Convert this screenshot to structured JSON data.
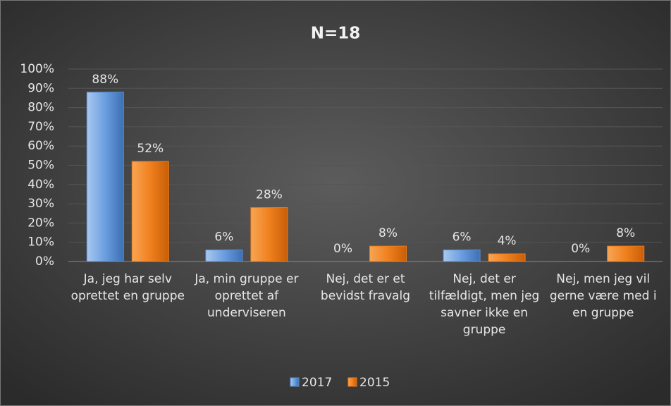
{
  "chart_data": {
    "type": "bar",
    "title": "N=18",
    "categories": [
      "Ja, jeg har selv oprettet en gruppe",
      "Ja, min gruppe er oprettet af underviseren",
      "Nej, det er et bevidst fravalg",
      "Nej, det er tilfældigt, men jeg savner ikke en gruppe",
      "Nej, men jeg vil gerne være med i en gruppe"
    ],
    "series": [
      {
        "name": "2017",
        "color": "#5b8fd4",
        "values": [
          88,
          6,
          0,
          6,
          0
        ],
        "value_labels": [
          "88%",
          "6%",
          "0%",
          "6%",
          "0%"
        ]
      },
      {
        "name": "2015",
        "color": "#ee7d1a",
        "values": [
          52,
          28,
          8,
          4,
          8
        ],
        "value_labels": [
          "52%",
          "28%",
          "8%",
          "4%",
          "8%"
        ]
      }
    ],
    "ylim": [
      0,
      100
    ],
    "yticks": [
      {
        "value": 0,
        "label": "0%"
      },
      {
        "value": 10,
        "label": "10%"
      },
      {
        "value": 20,
        "label": "20%"
      },
      {
        "value": 30,
        "label": "30%"
      },
      {
        "value": 40,
        "label": "40%"
      },
      {
        "value": 50,
        "label": "50%"
      },
      {
        "value": 60,
        "label": "60%"
      },
      {
        "value": 70,
        "label": "70%"
      },
      {
        "value": 80,
        "label": "80%"
      },
      {
        "value": 90,
        "label": "90%"
      },
      {
        "value": 100,
        "label": "100%"
      }
    ],
    "grid": true,
    "legend": "bottom"
  }
}
